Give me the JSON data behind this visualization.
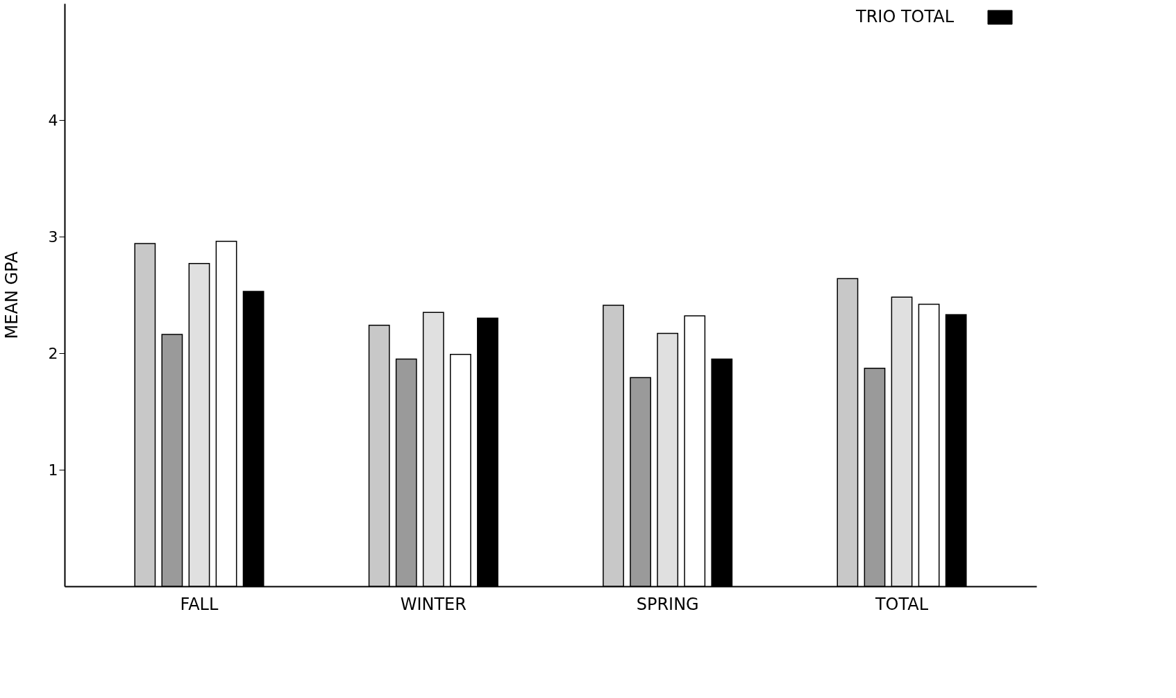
{
  "chart_data": {
    "type": "bar",
    "ylabel": "MEAN GPA",
    "categories": [
      "FALL",
      "WINTER",
      "SPRING",
      "TOTAL"
    ],
    "series": [
      {
        "color": "#c8c8c8",
        "values": [
          2.94,
          2.24,
          2.41,
          2.64
        ]
      },
      {
        "color": "#9a9a9a",
        "values": [
          2.16,
          1.95,
          1.79,
          1.87
        ]
      },
      {
        "color": "#e0e0e0",
        "values": [
          2.77,
          2.35,
          2.17,
          2.48
        ]
      },
      {
        "color": "#ffffff",
        "values": [
          2.96,
          1.99,
          2.32,
          2.42
        ]
      },
      {
        "name": "TRIO TOTAL",
        "color": "#000000",
        "values": [
          2.53,
          2.3,
          1.95,
          2.33
        ]
      }
    ],
    "ylim": [
      0,
      5
    ],
    "yticks": [
      1,
      2,
      3,
      4
    ],
    "grid": false,
    "legend": "top right"
  }
}
